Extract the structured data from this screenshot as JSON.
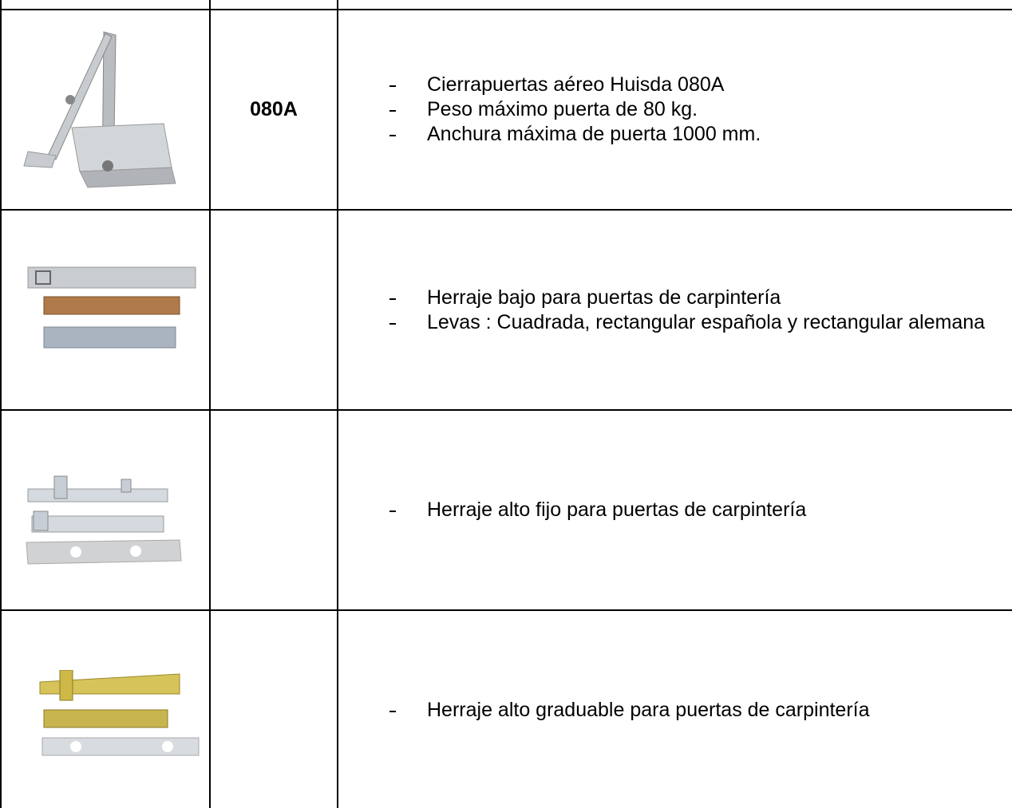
{
  "table": {
    "rows": [
      {
        "code": "080A",
        "items": [
          "Cierrapuertas aéreo Huisda 080A",
          "Peso máximo puerta de 80 kg.",
          "Anchura máxima de puerta 1000 mm."
        ]
      },
      {
        "items": [
          "Herraje bajo para puertas de carpintería",
          "Levas : Cuadrada, rectangular española y rectangular alemana"
        ]
      },
      {
        "items": [
          "Herraje alto fijo para puertas de carpintería"
        ]
      },
      {
        "items": [
          "Herraje alto graduable para puertas de carpintería"
        ]
      }
    ]
  }
}
